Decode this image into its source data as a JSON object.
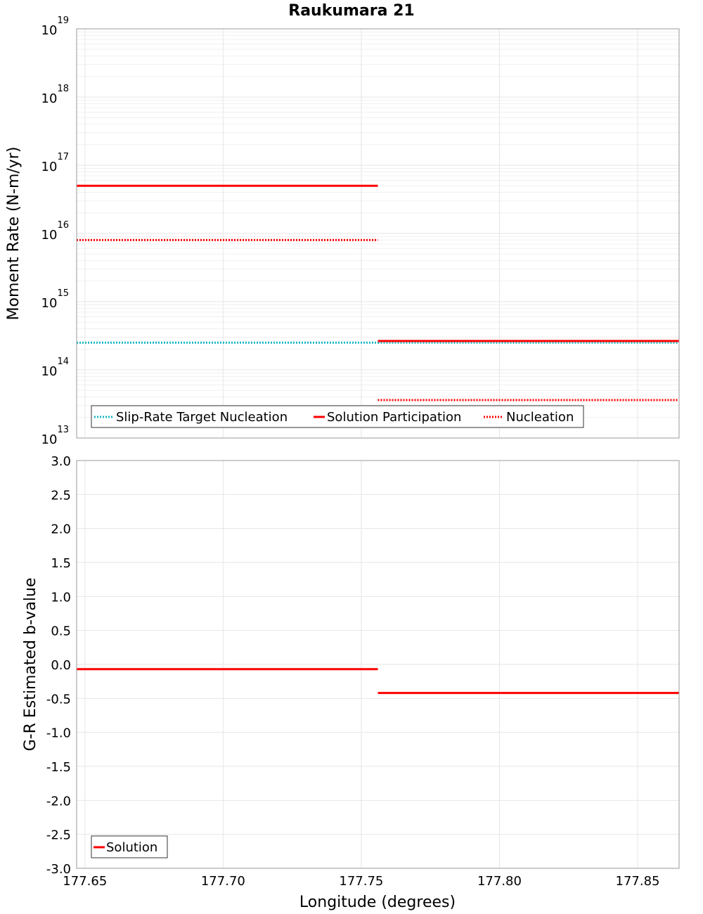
{
  "chart_data": [
    {
      "type": "line",
      "title": "Raukumara 21",
      "xlabel": "Longitude (degrees)",
      "ylabel": "Moment Rate (N-m/yr)",
      "yscale": "log",
      "ylim": [
        10000000000000.0,
        1e+19
      ],
      "xlim": [
        177.647,
        177.865
      ],
      "y_tick_base": "10",
      "y_tick_exponents": [
        "13",
        "14",
        "15",
        "16",
        "17",
        "18",
        "19"
      ],
      "grid": true,
      "legend_position": "bottom-left",
      "series": [
        {
          "name": "Slip-Rate Target Nucleation",
          "color": "#19b7c4",
          "style": "dotted",
          "segments": [
            {
              "x": [
                177.647,
                177.756
              ],
              "y": 250000000000000.0
            },
            {
              "x": [
                177.756,
                177.865
              ],
              "y": 250000000000000.0
            }
          ]
        },
        {
          "name": "Solution Participation",
          "color": "#ff0000",
          "style": "solid",
          "segments": [
            {
              "x": [
                177.647,
                177.756
              ],
              "y": 5e+16
            },
            {
              "x": [
                177.756,
                177.865
              ],
              "y": 265000000000000.0
            }
          ]
        },
        {
          "name": "Nucleation",
          "color": "#ff0000",
          "style": "dotted",
          "segments": [
            {
              "x": [
                177.647,
                177.756
              ],
              "y": 8000000000000000.0
            },
            {
              "x": [
                177.756,
                177.865
              ],
              "y": 36000000000000.0
            }
          ]
        }
      ]
    },
    {
      "type": "line",
      "xlabel": "Longitude (degrees)",
      "ylabel": "G-R Estimated b-value",
      "ylim": [
        -3.0,
        3.0
      ],
      "xlim": [
        177.647,
        177.865
      ],
      "x_ticks": [
        "177.65",
        "177.70",
        "177.75",
        "177.80",
        "177.85"
      ],
      "y_ticks": [
        "-3.0",
        "-2.5",
        "-2.0",
        "-1.5",
        "-1.0",
        "-0.5",
        "0.0",
        "0.5",
        "1.0",
        "1.5",
        "2.0",
        "2.5",
        "3.0"
      ],
      "grid": true,
      "legend_position": "bottom-left",
      "series": [
        {
          "name": "Solution",
          "color": "#ff0000",
          "style": "solid",
          "segments": [
            {
              "x": [
                177.647,
                177.756
              ],
              "y": -0.07
            },
            {
              "x": [
                177.756,
                177.865
              ],
              "y": -0.42
            }
          ]
        }
      ]
    }
  ]
}
